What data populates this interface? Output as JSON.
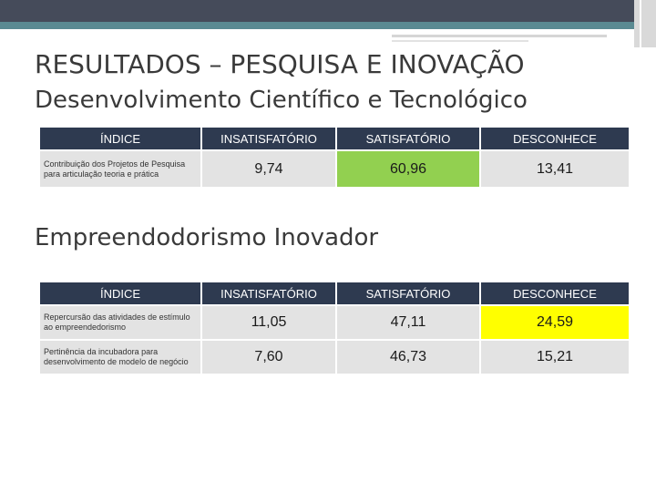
{
  "title": "RESULTADOS – PESQUISA E INOVAÇÃO",
  "subtitle": "Desenvolvimento Científico e Tecnológico",
  "headers": [
    "ÍNDICE",
    "INSATISFATÓRIO",
    "SATISFATÓRIO",
    "DESCONHECE"
  ],
  "table1": {
    "rows": [
      {
        "indice": "Contribuição dos Projetos de Pesquisa para articulação teoria e prática",
        "insatisfatorio": "9,74",
        "satisfatorio": "60,96",
        "desconhece": "13,41"
      }
    ]
  },
  "section2_title": "Empreendodorismo Inovador",
  "table2": {
    "rows": [
      {
        "indice": "Repercursão das atividades de estímulo ao empreendedorismo",
        "insatisfatorio": "11,05",
        "satisfatorio": "47,11",
        "desconhece": "24,59"
      },
      {
        "indice": "Pertinência da incubadora para desenvolvimento de modelo de negócio",
        "insatisfatorio": "7,60",
        "satisfatorio": "46,73",
        "desconhece": "15,21"
      }
    ]
  },
  "colors": {
    "header_bg": "#2e3a50",
    "cell_bg": "#e3e3e3",
    "highlight_green": "#92d050",
    "highlight_yellow": "#ffff00",
    "top_bar": "#454b5a",
    "accent": "#5a8a92"
  }
}
